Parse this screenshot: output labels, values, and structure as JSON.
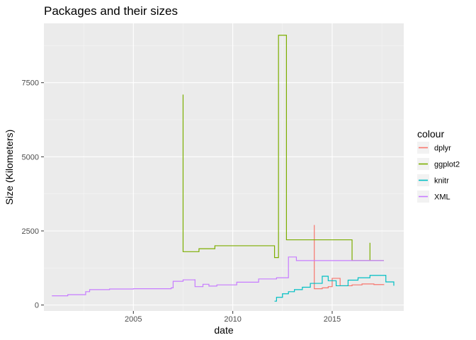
{
  "chart_data": {
    "type": "line",
    "title": "Packages and their sizes",
    "xlabel": "date",
    "ylabel": "Size (Kilometers)",
    "x_ticks": [
      2005,
      2010,
      2015
    ],
    "y_ticks": [
      0,
      2500,
      5000,
      7500
    ],
    "xlim": [
      2000.5,
      2018.6
    ],
    "ylim": [
      -200,
      9500
    ],
    "grid": true,
    "legend_title": "colour",
    "legend_position": "right",
    "series": [
      {
        "name": "dplyr",
        "color": "#F8766D",
        "points": [
          [
            2014.1,
            2700
          ],
          [
            2014.1,
            550
          ],
          [
            2014.5,
            580
          ],
          [
            2014.8,
            620
          ],
          [
            2015.0,
            900
          ],
          [
            2015.4,
            650
          ],
          [
            2016.0,
            680
          ],
          [
            2016.5,
            710
          ],
          [
            2017.1,
            690
          ],
          [
            2017.6,
            700
          ]
        ]
      },
      {
        "name": "ggplot2",
        "color": "#7CAE00",
        "points": [
          [
            2007.5,
            7100
          ],
          [
            2007.5,
            1800
          ],
          [
            2008.3,
            1900
          ],
          [
            2009.1,
            2000
          ],
          [
            2012.1,
            1600
          ],
          [
            2012.3,
            9100
          ],
          [
            2012.7,
            2200
          ],
          [
            2016.0,
            1500
          ],
          [
            2016.9,
            2100
          ],
          [
            2016.9,
            1500
          ],
          [
            2017.6,
            1500
          ]
        ]
      },
      {
        "name": "knitr",
        "color": "#00BFC4",
        "points": [
          [
            2012.1,
            130
          ],
          [
            2012.2,
            260
          ],
          [
            2012.5,
            380
          ],
          [
            2012.8,
            450
          ],
          [
            2013.1,
            520
          ],
          [
            2013.5,
            600
          ],
          [
            2013.9,
            730
          ],
          [
            2014.5,
            970
          ],
          [
            2014.8,
            820
          ],
          [
            2015.2,
            650
          ],
          [
            2015.8,
            840
          ],
          [
            2016.3,
            920
          ],
          [
            2016.9,
            1000
          ],
          [
            2017.7,
            780
          ],
          [
            2018.1,
            650
          ]
        ]
      },
      {
        "name": "XML",
        "color": "#C77CFF",
        "points": [
          [
            2000.9,
            310
          ],
          [
            2001.7,
            350
          ],
          [
            2002.6,
            450
          ],
          [
            2002.8,
            520
          ],
          [
            2003.8,
            540
          ],
          [
            2005.0,
            550
          ],
          [
            2006.9,
            580
          ],
          [
            2007.0,
            800
          ],
          [
            2007.5,
            850
          ],
          [
            2008.1,
            870
          ],
          [
            2008.1,
            620
          ],
          [
            2008.5,
            700
          ],
          [
            2008.8,
            640
          ],
          [
            2009.2,
            680
          ],
          [
            2010.2,
            770
          ],
          [
            2011.3,
            880
          ],
          [
            2012.2,
            920
          ],
          [
            2012.8,
            1620
          ],
          [
            2013.2,
            1500
          ],
          [
            2017.6,
            1500
          ]
        ]
      }
    ]
  }
}
